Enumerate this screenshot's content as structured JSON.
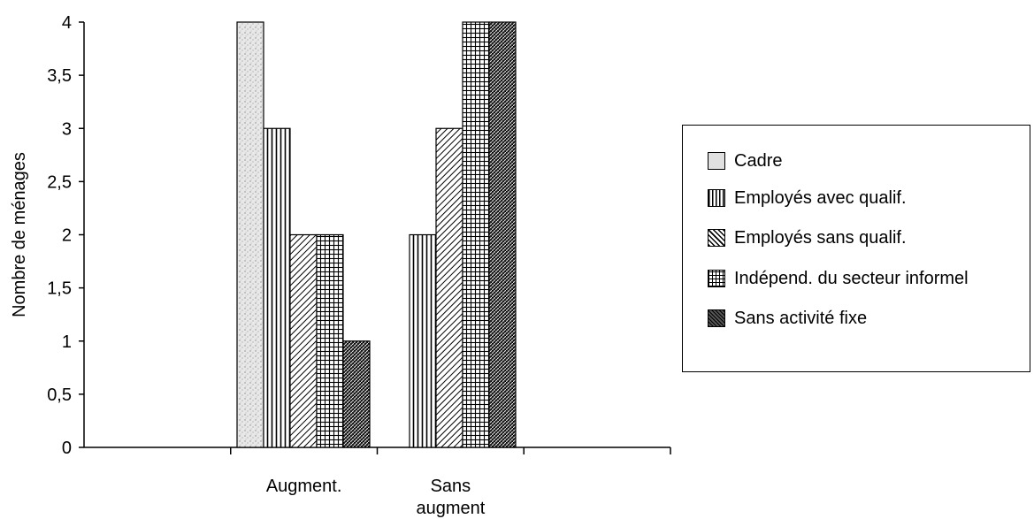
{
  "chart_data": {
    "type": "bar",
    "categories": [
      "Augment.",
      "Sans\naugment"
    ],
    "category_labels": [
      [
        "Augment."
      ],
      [
        "Sans",
        "augment"
      ]
    ],
    "series": [
      {
        "name": "Cadre",
        "values": [
          4,
          0
        ],
        "pattern": "dots"
      },
      {
        "name": "Employés avec qualif.",
        "values": [
          3,
          2
        ],
        "pattern": "vlines"
      },
      {
        "name": "Employés sans qualif.",
        "values": [
          2,
          3
        ],
        "pattern": "diag"
      },
      {
        "name": "Indépend. du secteur informel",
        "values": [
          2,
          4
        ],
        "pattern": "grid"
      },
      {
        "name": "Sans activité fixe",
        "values": [
          1,
          4
        ],
        "pattern": "cross"
      }
    ],
    "ylabel": "Nombre de ménages",
    "xlabel": "",
    "ylim": [
      0,
      4
    ],
    "yticks": [
      "0",
      "0,5",
      "1",
      "1,5",
      "2",
      "2,5",
      "3",
      "3,5",
      "4"
    ],
    "grid": false,
    "legend_position": "right"
  },
  "colors": {
    "background": "#ffffff",
    "ink": "#000000"
  }
}
